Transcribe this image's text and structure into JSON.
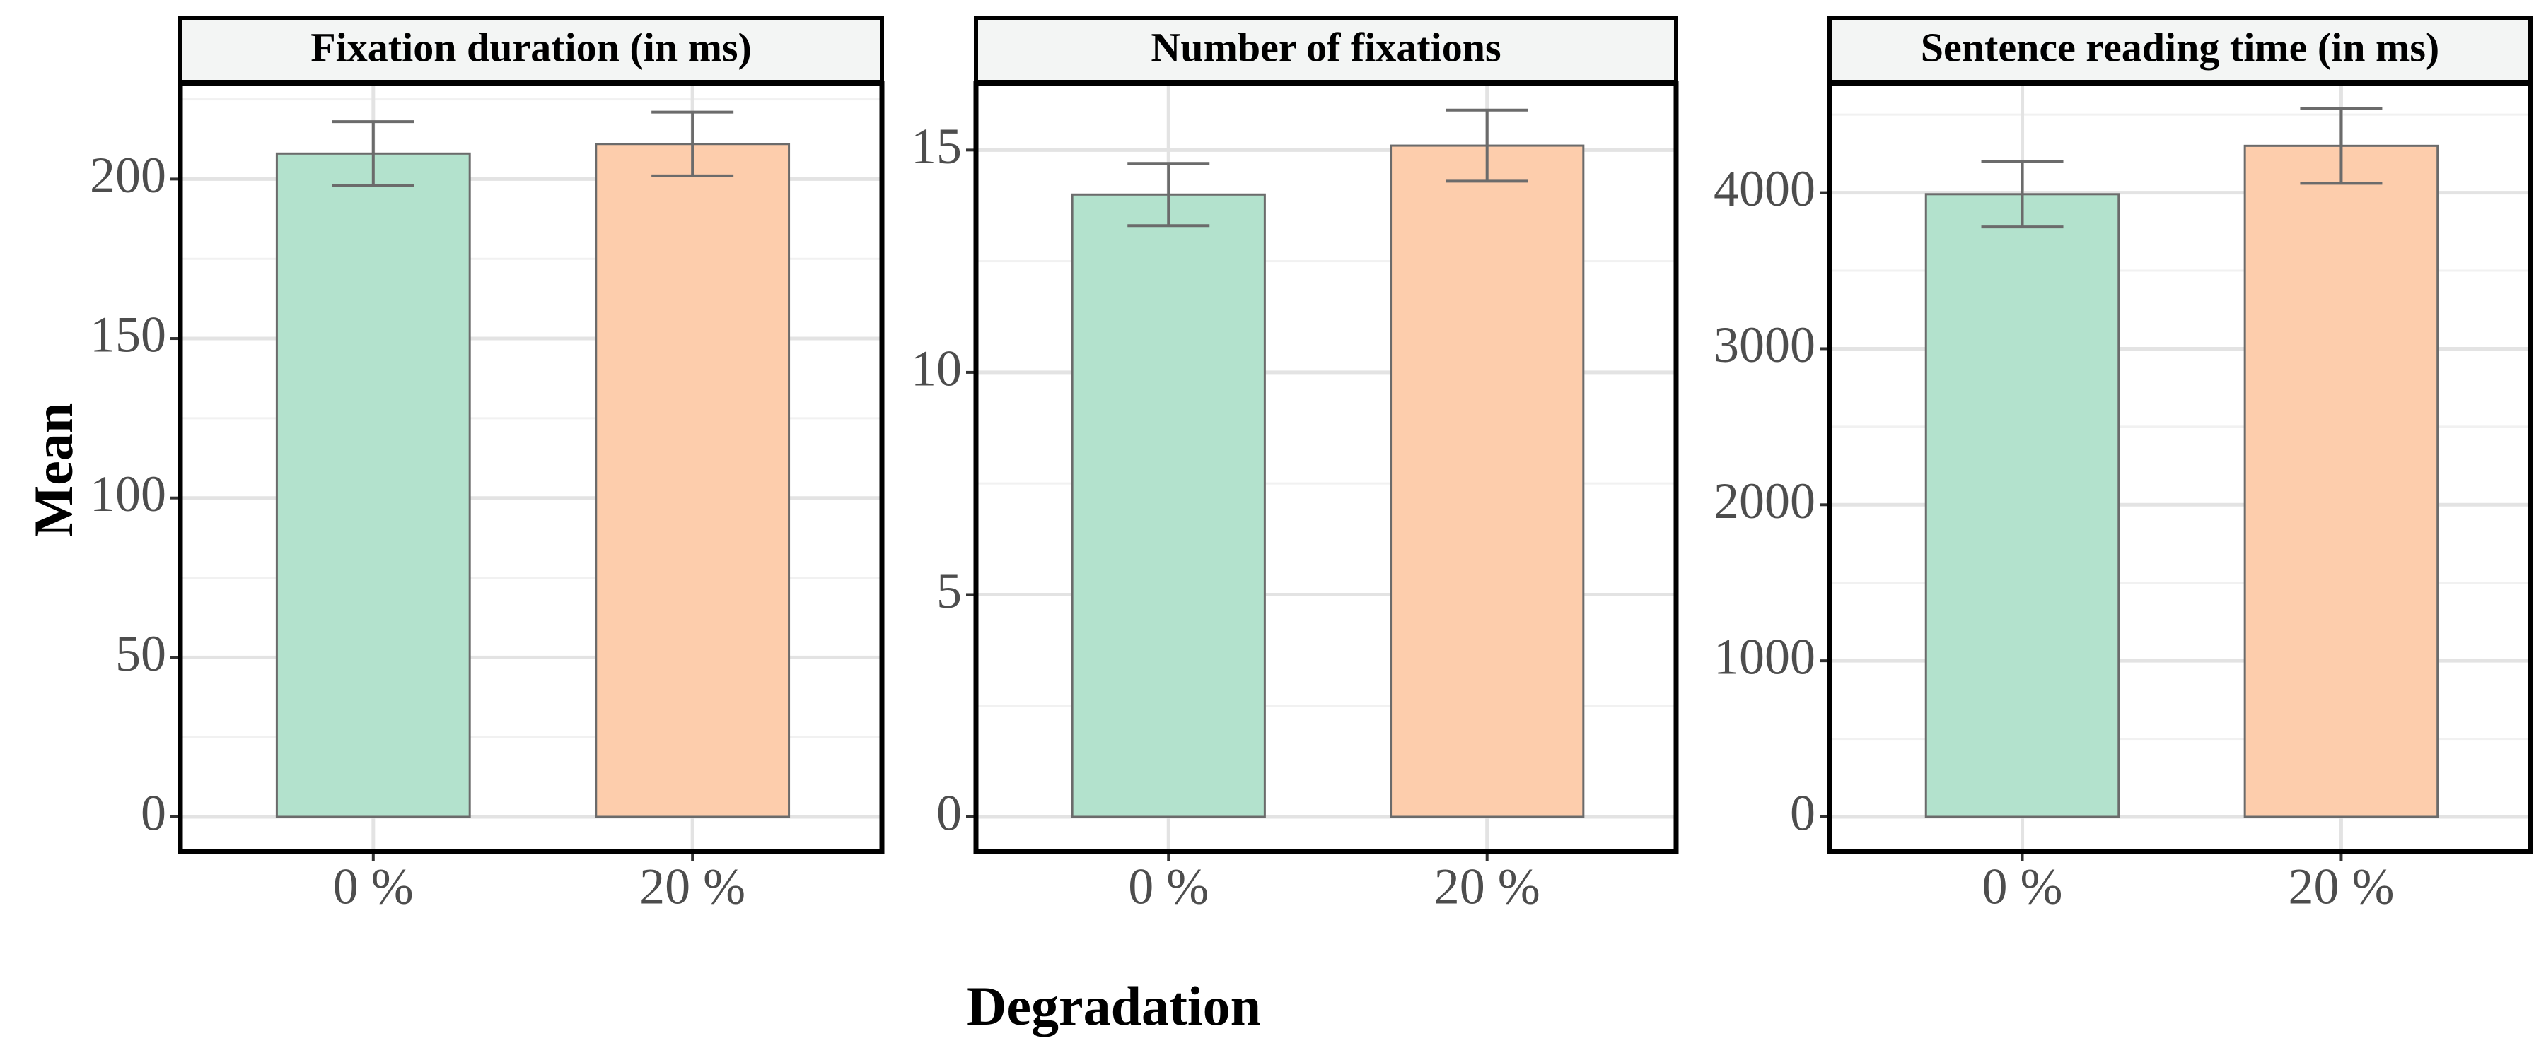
{
  "figure": {
    "ylabel": "Mean",
    "xlabel": "Degradation"
  },
  "colors": {
    "bar_0": "#b3e2cd",
    "bar_20": "#fdcdac",
    "bar_stroke": "#6b6b6b",
    "errorbar": "#6b6b6b",
    "grid_major": "#e3e3e3",
    "grid_minor": "#f1f1f1",
    "strip_fill": "#f3f5f4"
  },
  "chart_data": [
    {
      "type": "bar",
      "title": "Fixation duration (in ms)",
      "categories": [
        "0 %",
        "20 %"
      ],
      "values": [
        208,
        211
      ],
      "error_low": [
        198,
        201
      ],
      "error_high": [
        218,
        221
      ],
      "ylim": [
        0,
        230
      ],
      "yticks": [
        0,
        50,
        100,
        150,
        200
      ],
      "ytick_labels": [
        "0",
        "50",
        "100",
        "150",
        "200"
      ],
      "grid": true
    },
    {
      "type": "bar",
      "title": "Number of fixations",
      "categories": [
        "0 %",
        "20 %"
      ],
      "values": [
        14.0,
        15.1
      ],
      "error_low": [
        13.3,
        14.3
      ],
      "error_high": [
        14.7,
        15.9
      ],
      "ylim": [
        0,
        16.5
      ],
      "yticks": [
        0,
        5,
        10,
        15
      ],
      "ytick_labels": [
        "0",
        "5",
        "10",
        "15"
      ],
      "grid": true
    },
    {
      "type": "bar",
      "title": "Sentence reading time (in ms)",
      "categories": [
        "0 %",
        "20 %"
      ],
      "values": [
        3990,
        4300
      ],
      "error_low": [
        3780,
        4060
      ],
      "error_high": [
        4200,
        4540
      ],
      "ylim": [
        0,
        4700
      ],
      "yticks": [
        0,
        1000,
        2000,
        3000,
        4000
      ],
      "ytick_labels": [
        "0",
        "1000",
        "2000",
        "3000",
        "4000"
      ],
      "grid": true
    }
  ]
}
